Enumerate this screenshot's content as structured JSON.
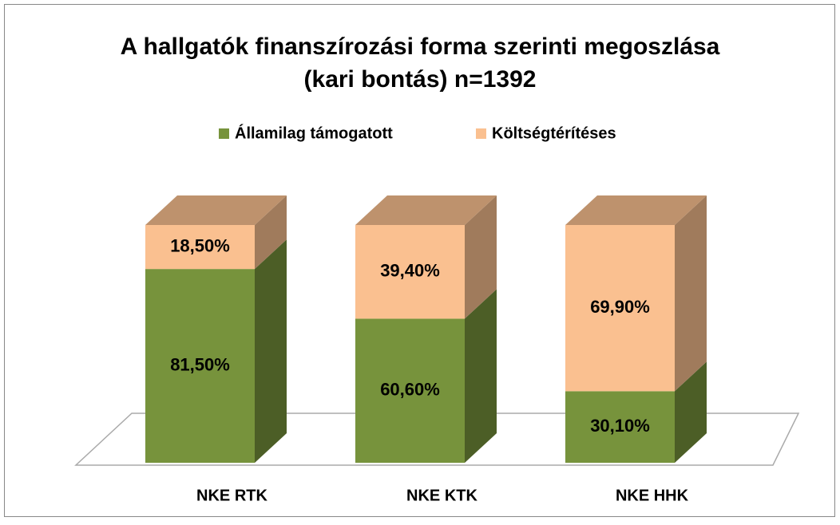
{
  "chart_data": {
    "type": "bar",
    "stacked": true,
    "title": [
      "A hallgatók finanszírozási forma szerinti megoszlása",
      "(kari bontás) n=1392"
    ],
    "categories": [
      "NKE RTK",
      "NKE KTK",
      "NKE HHK"
    ],
    "series": [
      {
        "name": "Államilag támogatott",
        "color": "#77933c",
        "values": [
          81.5,
          60.6,
          30.1
        ],
        "value_labels": [
          "81,50%",
          "60,60%",
          "30,10%"
        ]
      },
      {
        "name": "Költségtérítéses",
        "color": "#fac090",
        "values": [
          18.5,
          39.4,
          69.9
        ],
        "value_labels": [
          "18,50%",
          "39,40%",
          "69,90%"
        ]
      }
    ],
    "legend": "top"
  }
}
